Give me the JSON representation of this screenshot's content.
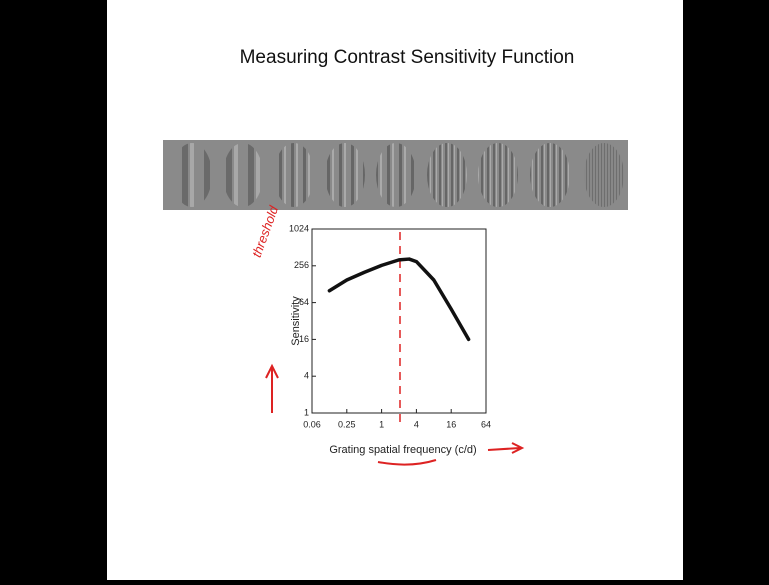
{
  "chart_data": {
    "type": "line",
    "title": "Measuring Contrast Sensitivity Function",
    "x_label": "Grating spatial frequency (c/d)",
    "y_label": "Sensitivity",
    "annotation": "threshold",
    "x_scale": "log",
    "y_scale": "log",
    "xlim": [
      0.0625,
      64
    ],
    "ylim": [
      1,
      1024
    ],
    "xticks": [
      {
        "value": 0.0625,
        "label": "0.06"
      },
      0.25,
      1,
      4,
      16,
      64
    ],
    "yticks": [
      1,
      4,
      16,
      64,
      256,
      1024
    ],
    "series": [
      {
        "color": "#111111",
        "x": [
          0.125,
          0.25,
          0.5,
          1,
          2,
          3,
          4,
          8,
          16,
          32
        ],
        "values": [
          100,
          150,
          200,
          260,
          320,
          330,
          300,
          150,
          50,
          16
        ]
      }
    ]
  }
}
